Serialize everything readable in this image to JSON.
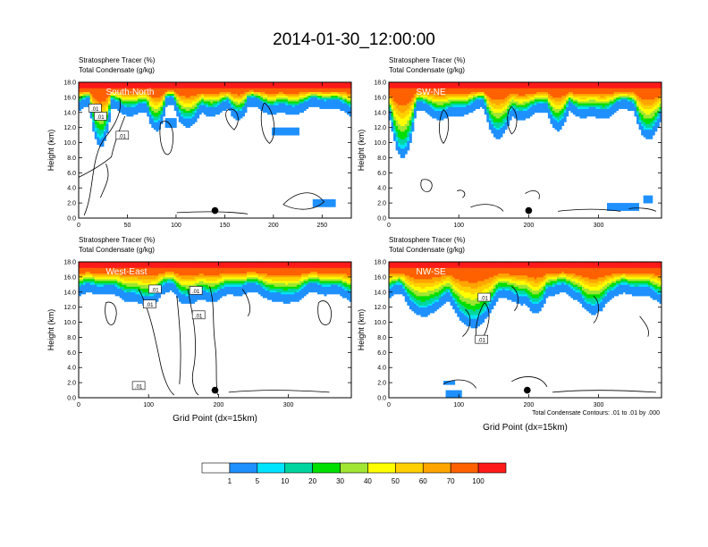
{
  "title": "2014-01-30_12:00:00",
  "colors": {
    "levels": [
      "#ffffff",
      "#1e90ff",
      "#00e5ff",
      "#00d5a0",
      "#00e000",
      "#a0e632",
      "#ffff00",
      "#ffd000",
      "#ffa500",
      "#ff6000",
      "#ff1a1a"
    ],
    "contour": "#000000",
    "marker": "#000000"
  },
  "colorbar": {
    "labels": [
      "1",
      "5",
      "10",
      "20",
      "30",
      "40",
      "50",
      "60",
      "70",
      "100"
    ]
  },
  "contour_note": "Total Condensate Contours: .01 to .01 by .000",
  "chart_data": [
    {
      "type": "heatmap",
      "id": "p1",
      "panel_label": "South-North",
      "title_lines": [
        "Stratosphere Tracer    (%)",
        "Total Condensate   (g/kg)"
      ],
      "xlabel": "",
      "ylabel": "Height (km)",
      "xlim": [
        0,
        280
      ],
      "ylim": [
        0,
        18
      ],
      "xticks": [
        "0",
        "50",
        "100",
        "150",
        "200",
        "250"
      ],
      "yticks": [
        "0.0",
        "2.0",
        "4.0",
        "6.0",
        "8.0",
        "10.0",
        "12.0",
        "14.0",
        "16.0",
        "18.0"
      ],
      "contour_labels": [
        ".01",
        ".01",
        ".01"
      ],
      "marker": {
        "x": 140,
        "y": 1.0
      }
    },
    {
      "type": "heatmap",
      "id": "p2",
      "panel_label": "SW-NE",
      "title_lines": [
        "Stratosphere Tracer    (%)",
        "Total Condensate   (g/kg)"
      ],
      "xlabel": "",
      "ylabel": "Height (km)",
      "xlim": [
        0,
        390
      ],
      "ylim": [
        0,
        18
      ],
      "xticks": [
        "0",
        "100",
        "200",
        "300"
      ],
      "yticks": [
        "0.0",
        "2.0",
        "4.0",
        "6.0",
        "8.0",
        "10.0",
        "12.0",
        "14.0",
        "16.0",
        "18.0"
      ],
      "contour_labels": [],
      "marker": {
        "x": 200,
        "y": 1.0
      }
    },
    {
      "type": "heatmap",
      "id": "p3",
      "panel_label": "West-East",
      "title_lines": [
        "Stratosphere Tracer    (%)",
        "Total Condensate   (g/kg)"
      ],
      "xlabel": "Grid Point (dx=15km)",
      "ylabel": "Height (km)",
      "xlim": [
        0,
        390
      ],
      "ylim": [
        0,
        18
      ],
      "xticks": [
        "0",
        "100",
        "200",
        "300"
      ],
      "yticks": [
        "0.0",
        "2.0",
        "4.0",
        "6.0",
        "8.0",
        "10.0",
        "12.0",
        "14.0",
        "16.0",
        "18.0"
      ],
      "contour_labels": [
        ".01",
        ".01",
        ".01",
        ".01",
        ".01"
      ],
      "marker": {
        "x": 195,
        "y": 1.0
      }
    },
    {
      "type": "heatmap",
      "id": "p4",
      "panel_label": "NW-SE",
      "title_lines": [
        "Stratosphere Tracer    (%)",
        "Total Condensate   (g/kg)"
      ],
      "xlabel": "Grid Point (dx=15km)",
      "ylabel": "Height (km)",
      "xlim": [
        0,
        390
      ],
      "ylim": [
        0,
        18
      ],
      "xticks": [
        "0",
        "100",
        "200",
        "300"
      ],
      "yticks": [
        "0.0",
        "2.0",
        "4.0",
        "6.0",
        "8.0",
        "10.0",
        "12.0",
        "14.0",
        "16.0",
        "18.0"
      ],
      "contour_labels": [
        ".01",
        ".01"
      ],
      "marker": {
        "x": 198,
        "y": 1.0
      }
    }
  ]
}
